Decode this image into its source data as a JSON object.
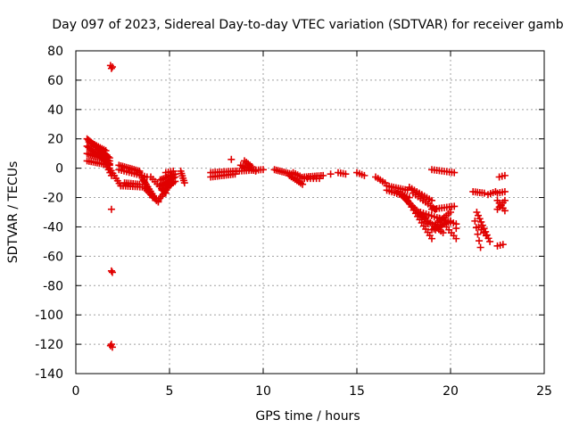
{
  "chart_data": {
    "type": "scatter",
    "title": "Day 097 of 2023, Sidereal Day-to-day VTEC variation (SDTVAR) for receiver gamb",
    "xlabel": "GPS time / hours",
    "ylabel": "SDTVAR / TECUs",
    "xlim": [
      0,
      25
    ],
    "ylim": [
      -140,
      80
    ],
    "xticks": [
      0,
      5,
      10,
      15,
      20,
      25
    ],
    "yticks": [
      80,
      60,
      40,
      20,
      0,
      -20,
      -40,
      -60,
      -80,
      -100,
      -120,
      -140
    ],
    "grid": true,
    "marker": "+",
    "color": "#e00000",
    "segments": [
      {
        "x0": 0.6,
        "y0": 20,
        "x1": 1.8,
        "y1": 7,
        "n": 18
      },
      {
        "x0": 0.6,
        "y0": 15,
        "x1": 1.8,
        "y1": 3,
        "n": 16
      },
      {
        "x0": 0.6,
        "y0": 10,
        "x1": 1.8,
        "y1": 5,
        "n": 14
      },
      {
        "x0": 0.6,
        "y0": 5,
        "x1": 1.8,
        "y1": 2,
        "n": 12
      },
      {
        "x0": 0.7,
        "y0": 18,
        "x1": 1.6,
        "y1": 12,
        "n": 10
      },
      {
        "x0": 1.2,
        "y0": 13,
        "x1": 1.9,
        "y1": -5,
        "n": 10
      },
      {
        "x0": 1.8,
        "y0": 0,
        "x1": 2.4,
        "y1": -12,
        "n": 8
      },
      {
        "x0": 2.3,
        "y0": 2,
        "x1": 3.4,
        "y1": -2,
        "n": 12
      },
      {
        "x0": 2.3,
        "y0": -1,
        "x1": 3.8,
        "y1": -6,
        "n": 12
      },
      {
        "x0": 2.4,
        "y0": -12,
        "x1": 3.8,
        "y1": -13,
        "n": 12
      },
      {
        "x0": 2.6,
        "y0": -10,
        "x1": 3.4,
        "y1": -11,
        "n": 8
      },
      {
        "x0": 3.4,
        "y0": -3,
        "x1": 4.1,
        "y1": -20,
        "n": 10
      },
      {
        "x0": 3.6,
        "y0": -8,
        "x1": 4.3,
        "y1": -22,
        "n": 10
      },
      {
        "x0": 3.7,
        "y0": -14,
        "x1": 4.4,
        "y1": -23,
        "n": 8
      },
      {
        "x0": 4.0,
        "y0": -6,
        "x1": 4.8,
        "y1": -17,
        "n": 8
      },
      {
        "x0": 4.4,
        "y0": -22,
        "x1": 5.0,
        "y1": -12,
        "n": 8
      },
      {
        "x0": 4.5,
        "y0": -8,
        "x1": 5.3,
        "y1": -4,
        "n": 10
      },
      {
        "x0": 4.5,
        "y0": -12,
        "x1": 5.3,
        "y1": -6,
        "n": 10
      },
      {
        "x0": 4.6,
        "y0": -15,
        "x1": 5.3,
        "y1": -9,
        "n": 8
      },
      {
        "x0": 4.8,
        "y0": -3,
        "x1": 5.2,
        "y1": -2,
        "n": 4
      },
      {
        "x0": 5.6,
        "y0": -2,
        "x1": 5.8,
        "y1": -10,
        "n": 6
      },
      {
        "x0": 7.2,
        "y0": -3,
        "x1": 8.5,
        "y1": -2,
        "n": 12
      },
      {
        "x0": 7.2,
        "y0": -6,
        "x1": 8.5,
        "y1": -4,
        "n": 12
      },
      {
        "x0": 8.6,
        "y0": -2,
        "x1": 10.0,
        "y1": -1,
        "n": 12
      },
      {
        "x0": 8.8,
        "y0": 2,
        "x1": 9.6,
        "y1": -2,
        "n": 8
      },
      {
        "x0": 9.0,
        "y0": 5,
        "x1": 9.4,
        "y1": 1,
        "n": 5
      },
      {
        "x0": 10.6,
        "y0": -1,
        "x1": 11.5,
        "y1": -4,
        "n": 10
      },
      {
        "x0": 11.4,
        "y0": -5,
        "x1": 12.1,
        "y1": -11,
        "n": 8
      },
      {
        "x0": 11.6,
        "y0": -3,
        "x1": 12.2,
        "y1": -7,
        "n": 6
      },
      {
        "x0": 12.2,
        "y0": -6,
        "x1": 13.2,
        "y1": -5,
        "n": 10
      },
      {
        "x0": 12.2,
        "y0": -7,
        "x1": 13.0,
        "y1": -7,
        "n": 6
      },
      {
        "x0": 14.0,
        "y0": -3,
        "x1": 14.4,
        "y1": -4,
        "n": 4
      },
      {
        "x0": 15.0,
        "y0": -3,
        "x1": 15.4,
        "y1": -5,
        "n": 4
      },
      {
        "x0": 16.0,
        "y0": -6,
        "x1": 16.5,
        "y1": -10,
        "n": 5
      },
      {
        "x0": 16.6,
        "y0": -12,
        "x1": 17.7,
        "y1": -15,
        "n": 10
      },
      {
        "x0": 16.6,
        "y0": -15,
        "x1": 17.8,
        "y1": -20,
        "n": 10
      },
      {
        "x0": 17.2,
        "y0": -16,
        "x1": 18.6,
        "y1": -34,
        "n": 14
      },
      {
        "x0": 17.4,
        "y0": -18,
        "x1": 18.8,
        "y1": -38,
        "n": 14
      },
      {
        "x0": 17.6,
        "y0": -20,
        "x1": 19.0,
        "y1": -48,
        "n": 14
      },
      {
        "x0": 17.8,
        "y0": -13,
        "x1": 19.0,
        "y1": -22,
        "n": 10
      },
      {
        "x0": 18.0,
        "y0": -17,
        "x1": 19.2,
        "y1": -28,
        "n": 10
      },
      {
        "x0": 18.4,
        "y0": -30,
        "x1": 20.3,
        "y1": -38,
        "n": 14
      },
      {
        "x0": 18.8,
        "y0": -36,
        "x1": 19.6,
        "y1": -44,
        "n": 8
      },
      {
        "x0": 19.0,
        "y0": -42,
        "x1": 20.0,
        "y1": -36,
        "n": 10
      },
      {
        "x0": 19.0,
        "y0": -28,
        "x1": 20.2,
        "y1": -26,
        "n": 10
      },
      {
        "x0": 19.4,
        "y0": -34,
        "x1": 20.3,
        "y1": -48,
        "n": 8
      },
      {
        "x0": 19.2,
        "y0": -38,
        "x1": 20.0,
        "y1": -30,
        "n": 8
      },
      {
        "x0": 19.0,
        "y0": -1,
        "x1": 20.2,
        "y1": -3,
        "n": 10
      },
      {
        "x0": 21.2,
        "y0": -16,
        "x1": 21.8,
        "y1": -17,
        "n": 6
      },
      {
        "x0": 21.4,
        "y0": -30,
        "x1": 22.1,
        "y1": -50,
        "n": 10
      },
      {
        "x0": 21.3,
        "y0": -36,
        "x1": 21.6,
        "y1": -54,
        "n": 5
      },
      {
        "x0": 21.5,
        "y0": -40,
        "x1": 21.9,
        "y1": -46,
        "n": 4
      },
      {
        "x0": 22.0,
        "y0": -18,
        "x1": 22.4,
        "y1": -16,
        "n": 4
      },
      {
        "x0": 22.5,
        "y0": -17,
        "x1": 22.9,
        "y1": -16,
        "n": 4
      },
      {
        "x0": 22.6,
        "y0": -6,
        "x1": 22.9,
        "y1": -5,
        "n": 3
      },
      {
        "x0": 22.5,
        "y0": -53,
        "x1": 22.8,
        "y1": -52,
        "n": 3
      },
      {
        "x0": 22.5,
        "y0": -22,
        "x1": 22.9,
        "y1": -29,
        "n": 5
      },
      {
        "x0": 22.5,
        "y0": -28,
        "x1": 22.9,
        "y1": -22,
        "n": 5
      }
    ],
    "points": [
      {
        "x": 1.85,
        "y": 70
      },
      {
        "x": 1.9,
        "y": 68
      },
      {
        "x": 1.95,
        "y": 69
      },
      {
        "x": 1.9,
        "y": -28
      },
      {
        "x": 1.9,
        "y": -70
      },
      {
        "x": 1.95,
        "y": -71
      },
      {
        "x": 1.9,
        "y": -120
      },
      {
        "x": 1.95,
        "y": -122
      },
      {
        "x": 1.85,
        "y": -121
      },
      {
        "x": 8.3,
        "y": 6
      },
      {
        "x": 13.6,
        "y": -4
      },
      {
        "x": 19.2,
        "y": -42
      },
      {
        "x": 20.3,
        "y": -41
      },
      {
        "x": 18.6,
        "y": -33
      }
    ]
  }
}
